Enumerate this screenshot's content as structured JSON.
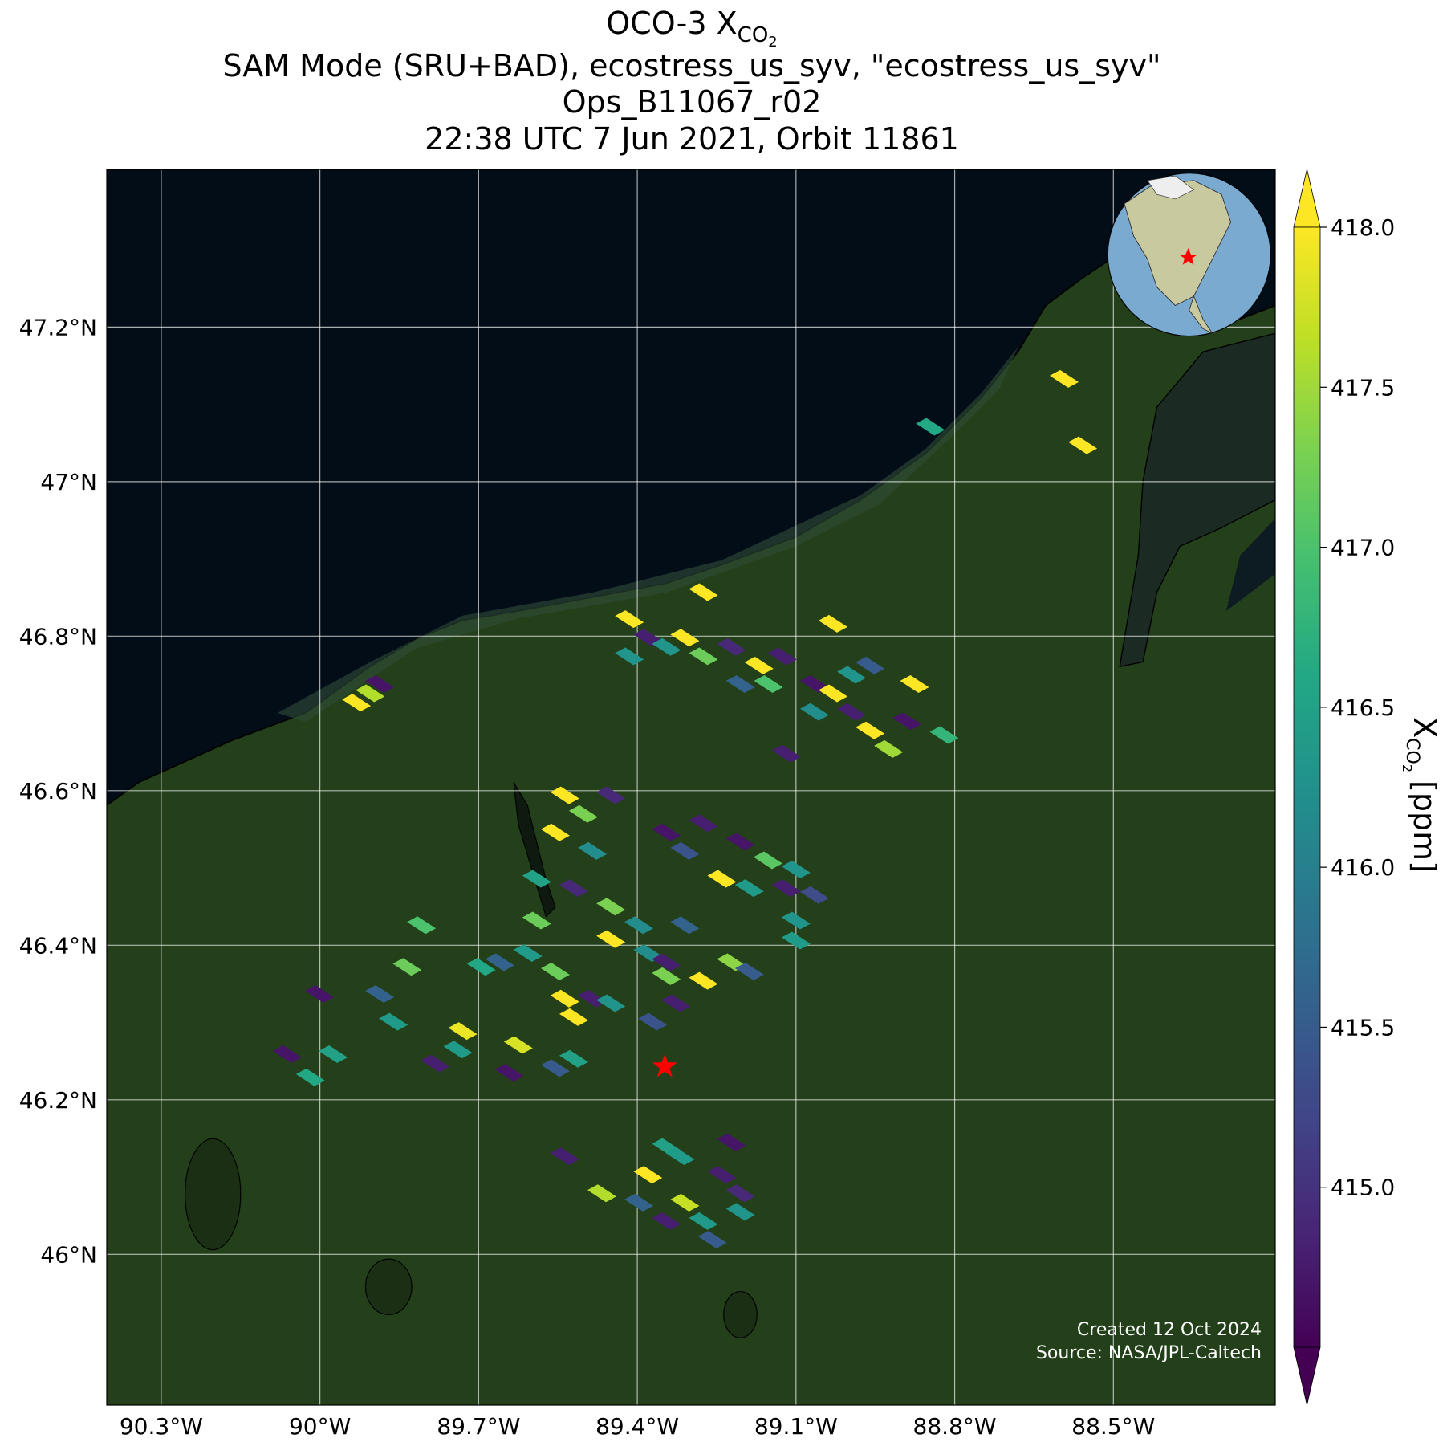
{
  "chart_data": {
    "type": "map",
    "title": {
      "line1": {
        "base": "OCO-3 X",
        "sub": "CO",
        "subsub": "2"
      },
      "lines": [
        "SAM Mode (SRU+BAD), ecostress_us_syv, \"ecostress_us_syv\"",
        "Ops_B11067_r02",
        "22:38 UTC 7 Jun 2021, Orbit 11861"
      ]
    },
    "xlim": [
      -90.403,
      -88.194
    ],
    "ylim": [
      45.805,
      47.404
    ],
    "xticks": [
      {
        "value": -90.3,
        "label": "90.3°W"
      },
      {
        "value": -90.0,
        "label": "90°W"
      },
      {
        "value": -89.7,
        "label": "89.7°W"
      },
      {
        "value": -89.4,
        "label": "89.4°W"
      },
      {
        "value": -89.1,
        "label": "89.1°W"
      },
      {
        "value": -88.8,
        "label": "88.8°W"
      },
      {
        "value": -88.5,
        "label": "88.5°W"
      }
    ],
    "yticks": [
      {
        "value": 46.0,
        "label": "46°N"
      },
      {
        "value": 46.2,
        "label": "46.2°N"
      },
      {
        "value": 46.4,
        "label": "46.4°N"
      },
      {
        "value": 46.6,
        "label": "46.6°N"
      },
      {
        "value": 46.8,
        "label": "46.8°N"
      },
      {
        "value": 47.0,
        "label": "47°N"
      },
      {
        "value": 47.2,
        "label": "47.2°N"
      }
    ],
    "grid": true,
    "colormap": "viridis",
    "colorbar": {
      "clim": [
        414.5,
        418.0
      ],
      "ticks": [
        {
          "value": 415.0,
          "label": "415.0"
        },
        {
          "value": 415.5,
          "label": "415.5"
        },
        {
          "value": 416.0,
          "label": "416.0"
        },
        {
          "value": 416.5,
          "label": "416.5"
        },
        {
          "value": 417.0,
          "label": "417.0"
        },
        {
          "value": 417.5,
          "label": "417.5"
        },
        {
          "value": 418.0,
          "label": "418.0"
        }
      ],
      "label": {
        "base": "X",
        "sub": "CO",
        "subsub": "2",
        "unit": "[ppm]"
      }
    },
    "site": {
      "lon": -89.348,
      "lat": 46.243,
      "color": "#ff0000"
    },
    "footprints": {
      "lon": [
        -89.275,
        -89.415,
        -89.38,
        -89.345,
        -89.31,
        -89.415,
        -89.275,
        -89.222,
        -89.17,
        -89.126,
        -89.205,
        -89.152,
        -89.065,
        -89.03,
        -88.995,
        -89.065,
        -88.995,
        -88.96,
        -88.925,
        -88.89,
        -89.03,
        -88.82,
        -88.846,
        -88.593,
        -88.558,
        -89.118,
        -88.96,
        -88.876,
        -89.887,
        -89.905,
        -89.931,
        -89.537,
        -89.502,
        -89.45,
        -89.555,
        -89.485,
        -89.345,
        -89.275,
        -89.31,
        -89.205,
        -89.153,
        -89.1,
        -89.24,
        -89.188,
        -89.118,
        -89.065,
        -89.1,
        -89.45,
        -89.52,
        -89.397,
        -89.45,
        -89.38,
        -89.31,
        -89.345,
        -89.275,
        -89.222,
        -89.188,
        -89.607,
        -89.555,
        -89.66,
        -89.695,
        -89.537,
        -89.485,
        -89.45,
        -89.52,
        -89.59,
        -89.59,
        -89.808,
        -89.835,
        -89.887,
        -89.861,
        -90.001,
        -90.062,
        -89.975,
        -90.018,
        -89.73,
        -89.739,
        -89.782,
        -89.642,
        -89.625,
        -89.52,
        -89.555,
        -89.327,
        -89.371,
        -89.345,
        -89.1,
        -89.345,
        -89.319,
        -89.222,
        -89.537,
        -89.38,
        -89.467,
        -89.397,
        -89.345,
        -89.275,
        -89.24,
        -89.205,
        -89.205,
        -89.258,
        -89.31
      ],
      "lat": [
        46.857,
        46.822,
        46.798,
        46.786,
        46.798,
        46.774,
        46.774,
        46.786,
        46.762,
        46.774,
        46.738,
        46.738,
        46.738,
        46.726,
        46.75,
        46.702,
        46.702,
        46.678,
        46.654,
        46.69,
        46.816,
        46.672,
        47.071,
        47.133,
        47.047,
        46.648,
        46.762,
        46.738,
        46.738,
        46.726,
        46.714,
        46.594,
        46.57,
        46.594,
        46.546,
        46.522,
        46.546,
        46.558,
        46.522,
        46.534,
        46.51,
        46.498,
        46.486,
        46.474,
        46.474,
        46.465,
        46.432,
        46.45,
        46.474,
        46.426,
        46.408,
        46.39,
        46.426,
        46.378,
        46.354,
        46.378,
        46.366,
        46.39,
        46.366,
        46.378,
        46.372,
        46.331,
        46.331,
        46.325,
        46.307,
        46.432,
        46.486,
        46.426,
        46.372,
        46.337,
        46.301,
        46.337,
        46.259,
        46.259,
        46.229,
        46.289,
        46.265,
        46.247,
        46.235,
        46.271,
        46.253,
        46.241,
        46.325,
        46.301,
        46.36,
        46.406,
        46.139,
        46.127,
        46.145,
        46.127,
        46.103,
        46.079,
        46.067,
        46.043,
        46.043,
        46.103,
        46.079,
        46.055,
        46.019,
        46.067
      ],
      "values": [
        418.0,
        418.0,
        414.8,
        416.3,
        418.0,
        416.3,
        417.2,
        414.9,
        418.0,
        414.8,
        415.6,
        417.0,
        414.7,
        418.0,
        416.3,
        416.2,
        414.8,
        418.0,
        417.5,
        414.7,
        418.0,
        416.8,
        416.6,
        418.0,
        418.0,
        414.8,
        415.5,
        418.0,
        414.7,
        417.6,
        418.0,
        418.0,
        417.3,
        414.9,
        418.0,
        416.2,
        414.7,
        414.8,
        415.4,
        414.7,
        417.1,
        416.3,
        418.0,
        416.4,
        414.8,
        415.3,
        416.3,
        417.3,
        414.9,
        416.2,
        418.0,
        416.2,
        415.6,
        414.8,
        418.0,
        417.4,
        415.5,
        416.4,
        417.2,
        415.6,
        416.6,
        418.0,
        414.8,
        416.3,
        418.0,
        417.2,
        416.5,
        417.0,
        417.2,
        415.6,
        416.4,
        414.7,
        414.7,
        416.5,
        416.6,
        417.9,
        416.4,
        414.8,
        414.7,
        417.8,
        416.5,
        415.5,
        414.8,
        415.4,
        417.3,
        416.4,
        416.5,
        416.4,
        414.7,
        414.8,
        418.0,
        417.6,
        415.6,
        414.8,
        416.4,
        414.8,
        414.9,
        416.3,
        415.5,
        417.7
      ]
    },
    "credits": [
      "Created 12 Oct 2024",
      "Source: NASA/JPL-Caltech"
    ]
  }
}
